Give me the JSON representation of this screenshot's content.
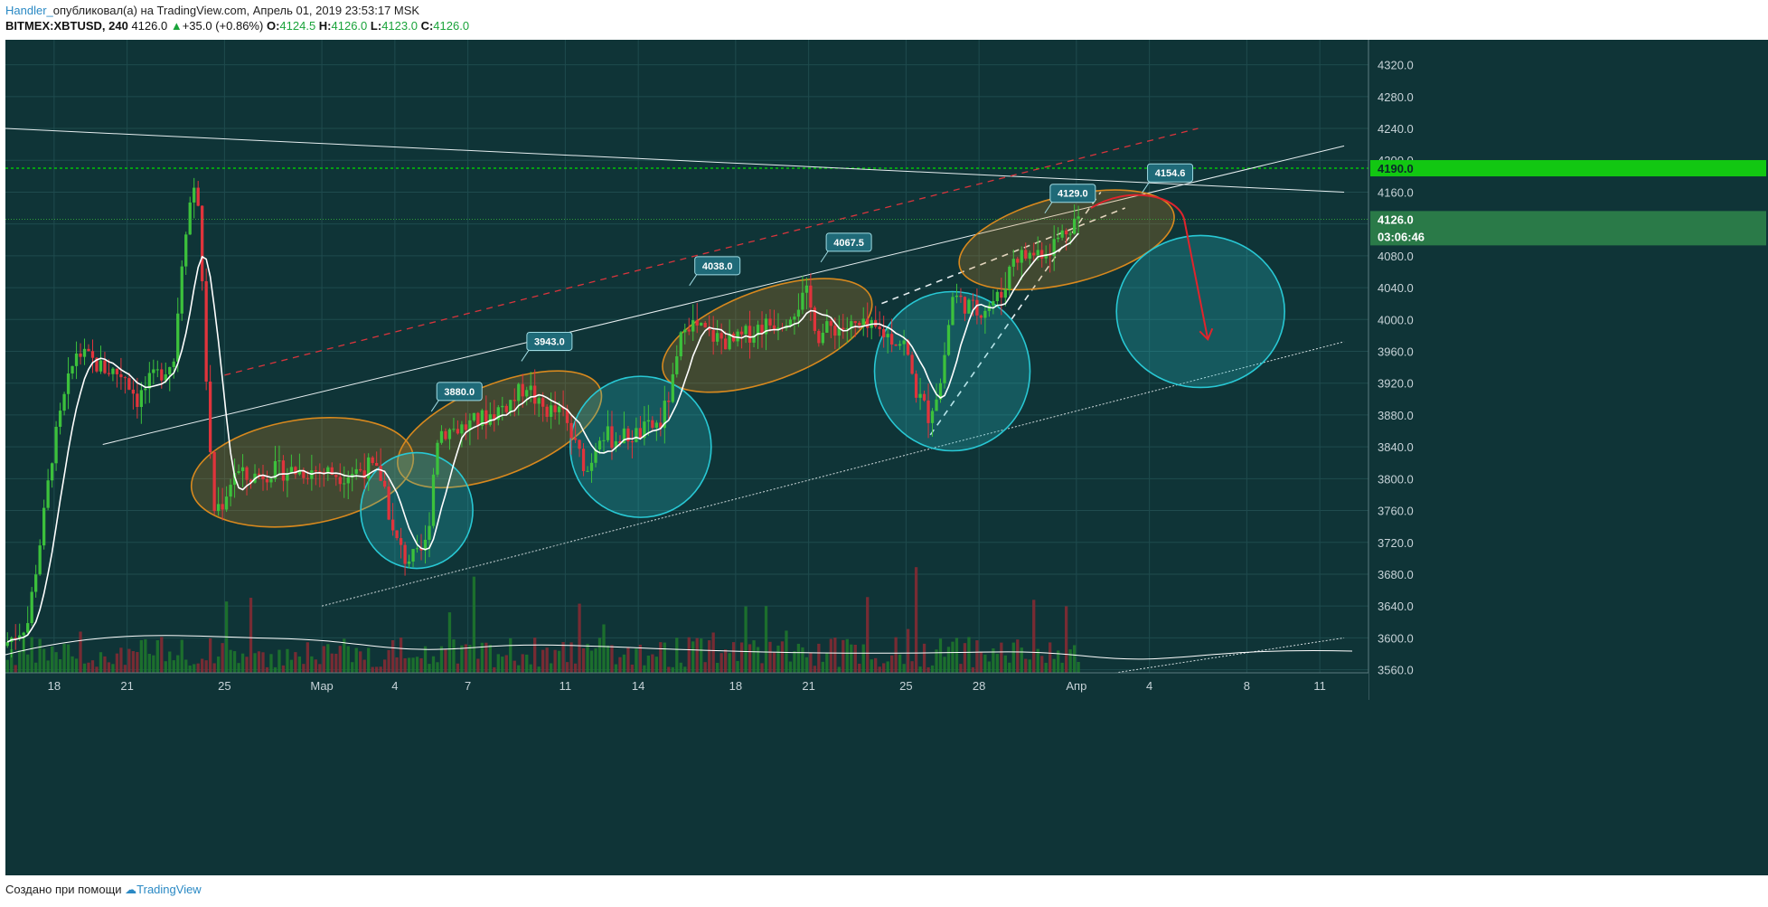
{
  "header": {
    "author": "Handler_",
    "published": "опубликовал(а) на TradingView.com, Апрель 01, 2019 23:53:17 MSK",
    "symbol": "BITMEX:XBTUSD, 240",
    "last": "4126.0",
    "change": "+35.0 (+0.86%)",
    "o_label": "O:",
    "o": "4124.5",
    "h_label": "H:",
    "h": "4126.0",
    "l_label": "L:",
    "l": "4123.0",
    "c_label": "C:",
    "c": "4126.0"
  },
  "footer": {
    "created_with": "Создано при помощи",
    "brand": "TradingView"
  },
  "colors": {
    "background": "#0f3437",
    "grid": "#1f4b4e",
    "up": "#3cc13c",
    "down": "#e0343c",
    "level": "#00e000",
    "highlight_orange": "#d8891e",
    "highlight_cyan": "#28c8d4"
  },
  "chart_data": {
    "type": "line",
    "title": "BITMEX:XBTUSD, 240",
    "xlabel": "",
    "ylabel": "",
    "ylim": [
      3530,
      4340
    ],
    "xlim": [
      "2019-02-16",
      "2019-04-13"
    ],
    "grid": true,
    "y_ticks": [
      "4320.0",
      "4280.0",
      "4240.0",
      "4200.0",
      "4160.0",
      "4120.0",
      "4080.0",
      "4040.0",
      "4000.0",
      "3960.0",
      "3920.0",
      "3880.0",
      "3840.0",
      "3800.0",
      "3760.0",
      "3720.0",
      "3680.0",
      "3640.0",
      "3600.0",
      "3560.0"
    ],
    "x_ticks": [
      {
        "label": "18",
        "date": "2019-02-18"
      },
      {
        "label": "21",
        "date": "2019-02-21"
      },
      {
        "label": "25",
        "date": "2019-02-25"
      },
      {
        "label": "Мар",
        "date": "2019-03-01"
      },
      {
        "label": "4",
        "date": "2019-03-04"
      },
      {
        "label": "7",
        "date": "2019-03-07"
      },
      {
        "label": "11",
        "date": "2019-03-11"
      },
      {
        "label": "14",
        "date": "2019-03-14"
      },
      {
        "label": "18",
        "date": "2019-03-18"
      },
      {
        "label": "21",
        "date": "2019-03-21"
      },
      {
        "label": "25",
        "date": "2019-03-25"
      },
      {
        "label": "28",
        "date": "2019-03-28"
      },
      {
        "label": "Апр",
        "date": "2019-04-01"
      },
      {
        "label": "4",
        "date": "2019-04-04"
      },
      {
        "label": "8",
        "date": "2019-04-08"
      },
      {
        "label": "11",
        "date": "2019-04-11"
      }
    ],
    "price_path": [
      [
        "2019-02-16",
        3590
      ],
      [
        "2019-02-17",
        3620
      ],
      [
        "2019-02-17.7",
        3760
      ],
      [
        "2019-02-18",
        3830
      ],
      [
        "2019-02-18.5",
        3900
      ],
      [
        "2019-02-19",
        3960
      ],
      [
        "2019-02-20",
        3940
      ],
      [
        "2019-02-21",
        3930
      ],
      [
        "2019-02-21.5",
        3900
      ],
      [
        "2019-02-22",
        3920
      ],
      [
        "2019-02-23",
        3950
      ],
      [
        "2019-02-23.4",
        4100
      ],
      [
        "2019-02-23.8",
        4170
      ],
      [
        "2019-02-24",
        4150
      ],
      [
        "2019-02-24.3",
        3950
      ],
      [
        "2019-02-24.6",
        3760
      ],
      [
        "2019-02-25",
        3770
      ],
      [
        "2019-02-25.5",
        3810
      ],
      [
        "2019-02-26",
        3800
      ],
      [
        "2019-02-27",
        3810
      ],
      [
        "2019-02-28",
        3810
      ],
      [
        "2019-03-01",
        3810
      ],
      [
        "2019-03-02",
        3805
      ],
      [
        "2019-03-03",
        3815
      ],
      [
        "2019-03-03.6",
        3800
      ],
      [
        "2019-03-04",
        3730
      ],
      [
        "2019-03-04.5",
        3700
      ],
      [
        "2019-03-05",
        3700
      ],
      [
        "2019-03-05.4",
        3720
      ],
      [
        "2019-03-05.8",
        3850
      ],
      [
        "2019-03-06",
        3860
      ],
      [
        "2019-03-07",
        3865
      ],
      [
        "2019-03-08",
        3880
      ],
      [
        "2019-03-09",
        3900
      ],
      [
        "2019-03-09.5",
        3920
      ],
      [
        "2019-03-10",
        3890
      ],
      [
        "2019-03-11",
        3880
      ],
      [
        "2019-03-11.5",
        3840
      ],
      [
        "2019-03-12",
        3810
      ],
      [
        "2019-03-12.5",
        3860
      ],
      [
        "2019-03-13",
        3850
      ],
      [
        "2019-03-14",
        3855
      ],
      [
        "2019-03-15",
        3870
      ],
      [
        "2019-03-15.5",
        3920
      ],
      [
        "2019-03-16",
        4000
      ],
      [
        "2019-03-17",
        3980
      ],
      [
        "2019-03-18",
        3970
      ],
      [
        "2019-03-19",
        3990
      ],
      [
        "2019-03-20",
        4000
      ],
      [
        "2019-03-21",
        4030
      ],
      [
        "2019-03-21.5",
        3980
      ],
      [
        "2019-03-22",
        3990
      ],
      [
        "2019-03-23",
        3990
      ],
      [
        "2019-03-24",
        3985
      ],
      [
        "2019-03-25",
        3970
      ],
      [
        "2019-03-25.5",
        3910
      ],
      [
        "2019-03-26",
        3880
      ],
      [
        "2019-03-26.5",
        3920
      ],
      [
        "2019-03-27",
        4030
      ],
      [
        "2019-03-28",
        4010
      ],
      [
        "2019-03-29",
        4030
      ],
      [
        "2019-03-29.5",
        4080
      ],
      [
        "2019-03-30",
        4080
      ],
      [
        "2019-03-31",
        4090
      ],
      [
        "2019-04-01",
        4126
      ]
    ],
    "series": [],
    "annotations": {
      "price_labels": [
        {
          "text": "3880.0",
          "date": "2019-03-05.5",
          "price": 3880
        },
        {
          "text": "3943.0",
          "date": "2019-03-09.2",
          "price": 3943
        },
        {
          "text": "4038.0",
          "date": "2019-03-16.1",
          "price": 4038
        },
        {
          "text": "4067.5",
          "date": "2019-03-21.5",
          "price": 4067.5
        },
        {
          "text": "4129.0",
          "date": "2019-03-30.7",
          "price": 4129
        },
        {
          "text": "4154.6",
          "date": "2019-04-03.7",
          "price": 4154.6
        }
      ],
      "level_line": {
        "price": 4190,
        "label": "4190.0"
      },
      "current_price": {
        "price": 4126,
        "label": "4126.0",
        "countdown": "03:06:46"
      }
    }
  }
}
